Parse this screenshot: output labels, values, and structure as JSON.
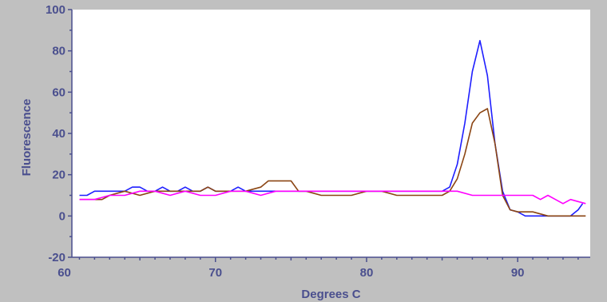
{
  "chart_data": {
    "type": "line",
    "title": "",
    "xlabel": "Degrees C",
    "ylabel": "Fluorescence",
    "xlim": [
      60.5,
      94.8
    ],
    "ylim": [
      -20,
      100
    ],
    "x_ticks": [
      60,
      70,
      80,
      90
    ],
    "x_tick_labels": [
      "60",
      "70",
      "80",
      "90"
    ],
    "y_ticks": [
      -20,
      0,
      20,
      40,
      60,
      80,
      100
    ],
    "y_tick_labels": [
      "-20",
      "0",
      "20",
      "40",
      "60",
      "80",
      "100"
    ],
    "grid": false,
    "legend": "none",
    "plot_background": "#ffffff",
    "frame_background": "#c0c0c0",
    "axis_color": "#4a4f8e",
    "series": [
      {
        "color": "#1f1fff",
        "x": [
          61,
          61.5,
          62,
          63,
          64,
          64.5,
          65,
          65.5,
          66,
          66.5,
          67,
          67.5,
          68,
          68.5,
          69,
          69.5,
          70,
          70.5,
          71,
          71.5,
          72,
          72.5,
          73,
          74,
          75,
          76,
          77,
          78,
          79,
          80,
          81,
          82,
          83,
          84,
          85,
          85.5,
          86,
          86.5,
          87,
          87.5,
          88,
          88.5,
          89,
          89.5,
          90,
          90.5,
          91,
          92,
          93,
          93.5,
          94,
          94.3
        ],
        "y": [
          10,
          10,
          12,
          12,
          12,
          14,
          14,
          12,
          12,
          14,
          12,
          12,
          14,
          12,
          12,
          14,
          12,
          12,
          12,
          14,
          12,
          12,
          12,
          12,
          12,
          12,
          12,
          12,
          12,
          12,
          12,
          12,
          12,
          12,
          12,
          14,
          25,
          45,
          70,
          85,
          68,
          35,
          12,
          3,
          2,
          0,
          0,
          0,
          0,
          0,
          3,
          6
        ]
      },
      {
        "color": "#8b4513",
        "x": [
          61,
          62,
          62.5,
          63,
          64,
          65,
          66,
          67,
          68,
          69,
          69.5,
          70,
          71,
          72,
          73,
          73.5,
          74,
          75,
          75.5,
          76,
          77,
          78,
          79,
          80,
          81,
          82,
          83,
          84,
          85,
          85.5,
          86,
          86.5,
          87,
          87.5,
          88,
          88.5,
          89,
          89.5,
          90,
          91,
          92,
          93,
          94,
          94.5
        ],
        "y": [
          8,
          8,
          8,
          10,
          12,
          10,
          12,
          12,
          12,
          12,
          14,
          12,
          12,
          12,
          14,
          17,
          17,
          17,
          12,
          12,
          10,
          10,
          10,
          12,
          12,
          10,
          10,
          10,
          10,
          12,
          18,
          30,
          45,
          50,
          52,
          35,
          10,
          3,
          2,
          2,
          0,
          0,
          0,
          0
        ]
      },
      {
        "color": "#ff00ff",
        "x": [
          61,
          62,
          63,
          64,
          65,
          66,
          67,
          68,
          69,
          70,
          71,
          72,
          73,
          74,
          75,
          76,
          77,
          78,
          79,
          80,
          81,
          82,
          83,
          84,
          85,
          86,
          87,
          88,
          89,
          90,
          91,
          91.5,
          92,
          92.5,
          93,
          93.5,
          94,
          94.5
        ],
        "y": [
          8,
          8,
          10,
          10,
          12,
          12,
          10,
          12,
          10,
          10,
          12,
          12,
          10,
          12,
          12,
          12,
          12,
          12,
          12,
          12,
          12,
          12,
          12,
          12,
          12,
          12,
          10,
          10,
          10,
          10,
          10,
          8,
          10,
          8,
          6,
          8,
          7,
          6
        ]
      }
    ]
  }
}
